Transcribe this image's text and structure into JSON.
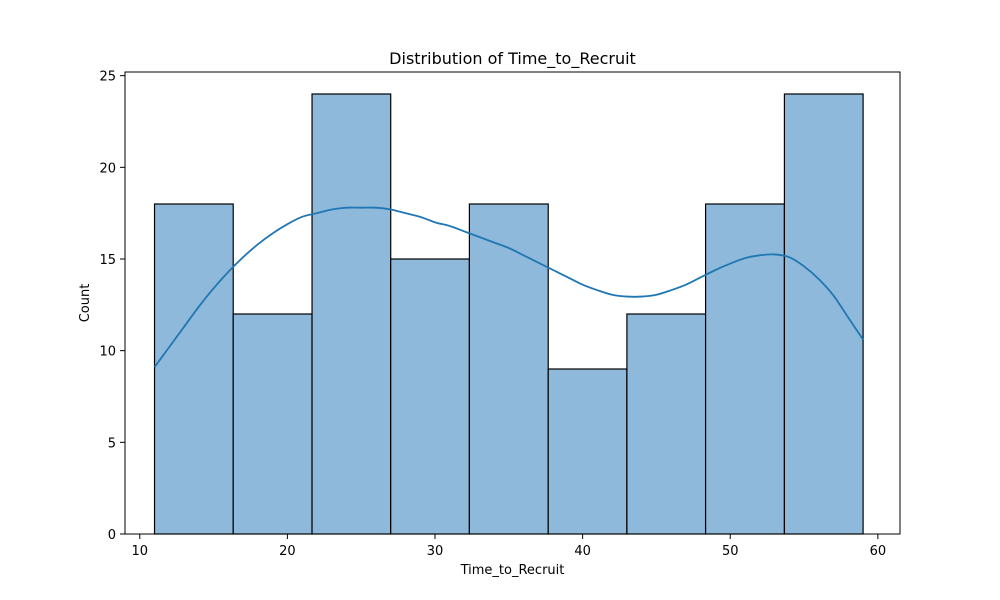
{
  "chart_data": {
    "type": "bar",
    "subtype": "histogram",
    "title": "Distribution of Time_to_Recruit",
    "xlabel": "Time_to_Recruit",
    "ylabel": "Count",
    "xlim": [
      9,
      61.5
    ],
    "ylim": [
      0,
      25.2
    ],
    "x_ticks": [
      10,
      20,
      30,
      40,
      50,
      60
    ],
    "y_ticks": [
      0,
      5,
      10,
      15,
      20,
      25
    ],
    "bins": [
      {
        "x_start": 11.0,
        "x_end": 16.33,
        "count": 18
      },
      {
        "x_start": 16.33,
        "x_end": 21.67,
        "count": 12
      },
      {
        "x_start": 21.67,
        "x_end": 27.0,
        "count": 24
      },
      {
        "x_start": 27.0,
        "x_end": 32.33,
        "count": 15
      },
      {
        "x_start": 32.33,
        "x_end": 37.67,
        "count": 18
      },
      {
        "x_start": 37.67,
        "x_end": 43.0,
        "count": 9
      },
      {
        "x_start": 43.0,
        "x_end": 48.33,
        "count": 12
      },
      {
        "x_start": 48.33,
        "x_end": 53.67,
        "count": 18
      },
      {
        "x_start": 53.67,
        "x_end": 59.0,
        "count": 24
      }
    ],
    "kde": {
      "x": [
        11,
        12,
        13,
        14,
        15,
        16,
        17,
        18,
        19,
        20,
        21,
        22,
        23,
        24,
        25,
        26,
        27,
        28,
        29,
        30,
        31,
        32,
        33,
        34,
        35,
        36,
        37,
        38,
        39,
        40,
        41,
        42,
        43,
        44,
        45,
        46,
        47,
        48,
        49,
        50,
        51,
        52,
        53,
        54,
        55,
        56,
        57,
        58,
        59
      ],
      "y": [
        9.1,
        10.2,
        11.3,
        12.4,
        13.4,
        14.3,
        15.1,
        15.8,
        16.4,
        16.9,
        17.3,
        17.5,
        17.7,
        17.8,
        17.8,
        17.8,
        17.7,
        17.5,
        17.3,
        17.0,
        16.8,
        16.5,
        16.2,
        15.9,
        15.6,
        15.2,
        14.8,
        14.4,
        14.0,
        13.6,
        13.3,
        13.05,
        12.95,
        12.95,
        13.05,
        13.3,
        13.6,
        14.0,
        14.4,
        14.75,
        15.05,
        15.2,
        15.25,
        15.1,
        14.6,
        13.9,
        13.0,
        11.8,
        10.6
      ]
    },
    "colors": {
      "bar_fill": "#8fb9da",
      "bar_edge": "#000000",
      "kde_line": "#1f77b4"
    },
    "grid": false,
    "legend": "none"
  }
}
